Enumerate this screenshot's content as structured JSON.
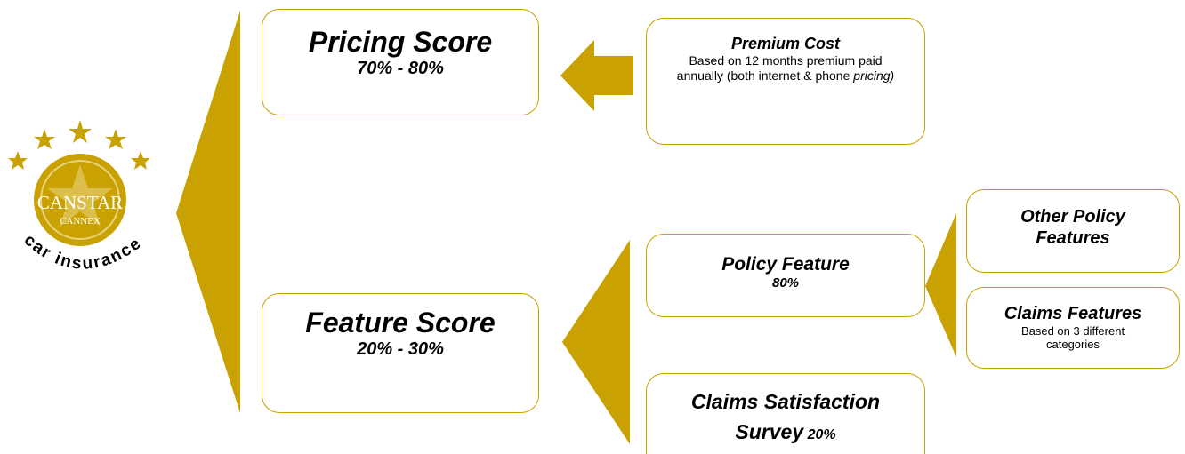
{
  "logo": {
    "brand": "CANSTAR",
    "sub_brand": "CANNEX",
    "product": "car insurance"
  },
  "nodes": [
    {
      "title": "Pricing Score",
      "subtitle": "70% - 80%"
    },
    {
      "title": "Feature Score",
      "subtitle": "20% - 30%"
    },
    {
      "title": "Premium Cost",
      "description": "Based on 12 months premium paid annually (both internet & phone ",
      "description_italic": "pricing)"
    },
    {
      "title": "Policy Feature",
      "subtitle": "80%"
    },
    {
      "title": "Claims Satisfaction Survey",
      "subtitle": "20%"
    },
    {
      "title": "Other Policy Features"
    },
    {
      "title": "Claims Features",
      "description": "Based on 3 different categories"
    }
  ]
}
